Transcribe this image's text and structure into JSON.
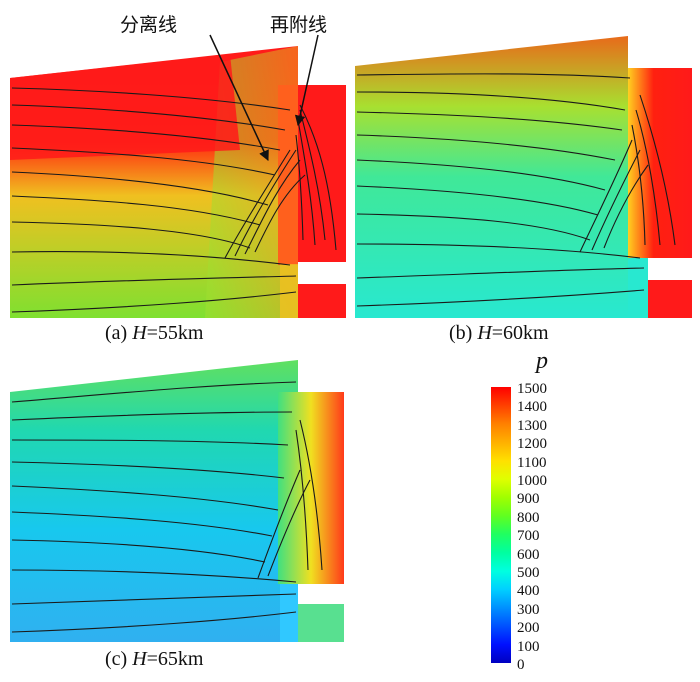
{
  "panels": [
    {
      "id": "a",
      "caption_prefix": "(a)  ",
      "caption_var": "H",
      "caption_value": "=55km",
      "regions": {
        "upstream_top": "#ff1a1a",
        "upstream_mid": "#f0c020",
        "upstream_bottom": "#7fe030",
        "wake": "#20e0c0",
        "cavity": "#ff1a1a",
        "cavity_bottom": "#ff1a1a"
      }
    },
    {
      "id": "b",
      "caption_prefix": "(b)  ",
      "caption_var": "H",
      "caption_value": "=60km",
      "regions": {
        "upstream_top": "#e86a1a",
        "upstream_mid": "#40e898",
        "upstream_bottom": "#28e8d0",
        "wake": "#28e0d8",
        "cavity": "#ff1a1a",
        "cavity_bottom": "#ff1a1a"
      }
    },
    {
      "id": "c",
      "caption_prefix": "(c)  ",
      "caption_var": "H",
      "caption_value": "=65km",
      "regions": {
        "upstream_top": "#60e060",
        "upstream_mid": "#18c8ee",
        "upstream_bottom": "#30b8f0",
        "wake": "#30c8ff",
        "cavity": "#ff3a1a",
        "cavity_bottom": "#58e090"
      }
    }
  ],
  "annotations": {
    "separation_line": "分离线",
    "reattachment_line": "再附线"
  },
  "colorbar": {
    "title": "p",
    "ticks": [
      "1500",
      "1400",
      "1300",
      "1200",
      "1100",
      "1000",
      "900",
      "800",
      "700",
      "600",
      "500",
      "400",
      "300",
      "200",
      "100",
      "0"
    ],
    "colors": [
      "#ff0000",
      "#ff4000",
      "#ff8000",
      "#ffb000",
      "#ffe000",
      "#e0ff00",
      "#a0ff00",
      "#60ff20",
      "#20ff60",
      "#00ffa0",
      "#00ffe0",
      "#00d0ff",
      "#0090ff",
      "#0050ff",
      "#0010ff",
      "#0000c0"
    ]
  }
}
